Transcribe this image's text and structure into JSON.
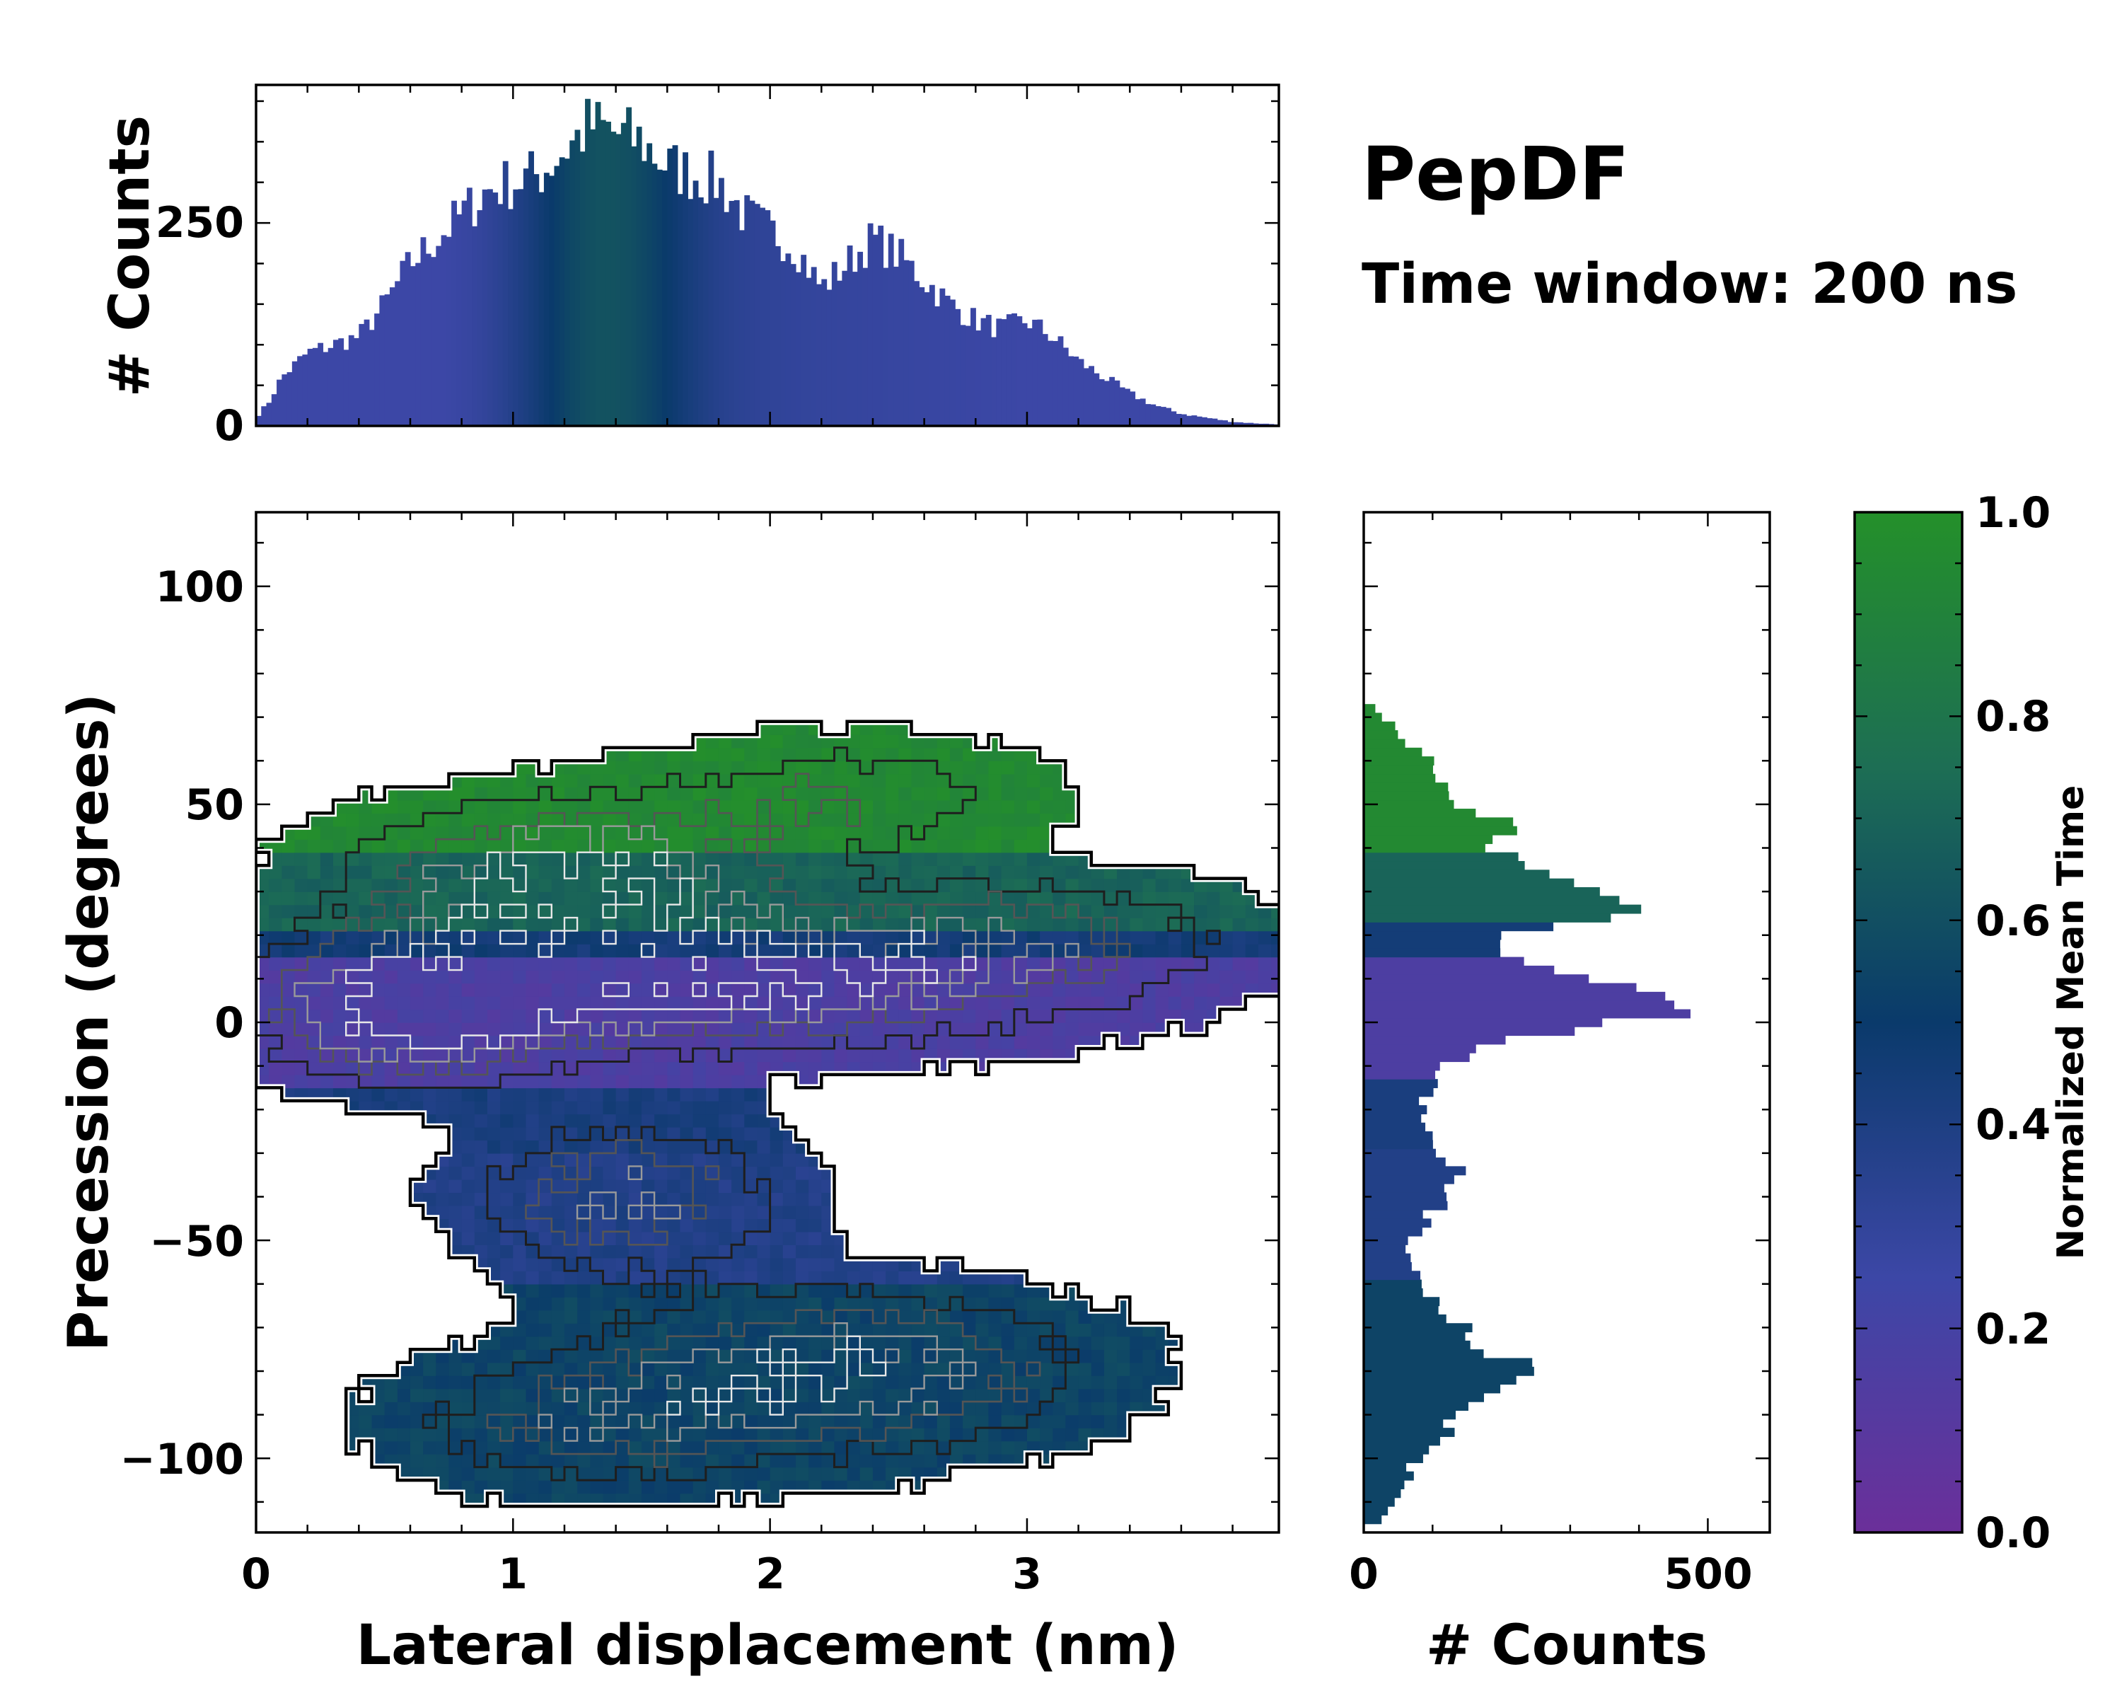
{
  "annotation": {
    "title": "PepDF",
    "subtitle": "Time window: 200 ns"
  },
  "colors": {
    "cmap_low": "#6b2f9a",
    "cmap_lowmid": "#3c47a6",
    "cmap_mid": "#0a3a6b",
    "cmap_highmid": "#1d6e54",
    "cmap_high": "#24902a",
    "contour_outer": "#000000",
    "contour_inner": "#f0f0f0"
  },
  "chart_data": [
    {
      "id": "top-histogram",
      "type": "bar",
      "title": "",
      "xlabel": "",
      "ylabel": "# Counts",
      "xlim": [
        0,
        3.98
      ],
      "ylim": [
        0,
        420
      ],
      "yticks": [
        0,
        250
      ],
      "bin_width": 0.02,
      "anchors_x": [
        0.0,
        0.05,
        0.1,
        0.2,
        0.3,
        0.4,
        0.5,
        0.6,
        0.7,
        0.8,
        0.9,
        1.0,
        1.1,
        1.2,
        1.3,
        1.4,
        1.5,
        1.6,
        1.7,
        1.8,
        1.9,
        2.0,
        2.1,
        2.2,
        2.3,
        2.4,
        2.5,
        2.6,
        2.7,
        2.8,
        2.9,
        3.0,
        3.1,
        3.2,
        3.3,
        3.4,
        3.5,
        3.6,
        3.7,
        3.8,
        3.9,
        3.98
      ],
      "anchors_counts": [
        10,
        30,
        60,
        90,
        100,
        110,
        150,
        200,
        230,
        260,
        290,
        300,
        310,
        340,
        370,
        360,
        350,
        320,
        310,
        300,
        260,
        240,
        220,
        170,
        200,
        230,
        210,
        180,
        150,
        130,
        120,
        130,
        110,
        80,
        60,
        40,
        25,
        15,
        10,
        5,
        3,
        2
      ],
      "colorscale": "normalized mean time"
    },
    {
      "id": "right-histogram",
      "type": "bar",
      "orientation": "horizontal",
      "xlabel": "# Counts",
      "ylabel": "",
      "xlim": [
        0,
        590
      ],
      "ylim": [
        -117,
        117
      ],
      "xticks": [
        0,
        500
      ],
      "bin_width": 2,
      "anchors_y": [
        -115,
        -110,
        -105,
        -100,
        -95,
        -90,
        -85,
        -82,
        -80,
        -75,
        -70,
        -65,
        -60,
        -55,
        -50,
        -45,
        -40,
        -35,
        -30,
        -25,
        -20,
        -15,
        -10,
        -5,
        0,
        3,
        5,
        10,
        15,
        20,
        25,
        30,
        35,
        40,
        45,
        50,
        55,
        60,
        65,
        70,
        72
      ],
      "anchors_counts": [
        20,
        40,
        60,
        80,
        110,
        150,
        210,
        260,
        240,
        180,
        150,
        100,
        80,
        70,
        70,
        90,
        120,
        150,
        120,
        90,
        80,
        110,
        130,
        200,
        320,
        500,
        420,
        300,
        210,
        200,
        390,
        330,
        220,
        180,
        200,
        150,
        100,
        90,
        60,
        30,
        15
      ],
      "colorscale": "normalized mean time"
    },
    {
      "id": "main-2d-histogram",
      "type": "heatmap",
      "title": "",
      "xlabel": "Lateral displacement (nm)",
      "ylabel": "Precession (degrees)",
      "xlim": [
        0,
        3.98
      ],
      "ylim": [
        -117,
        117
      ],
      "xticks": [
        0,
        1,
        2,
        3
      ],
      "yticks": [
        -100,
        -50,
        0,
        50,
        100
      ],
      "value_meaning": "Normalized Mean Time",
      "density_clusters": [
        {
          "x": 1.2,
          "y": 32,
          "spread_x": 0.55,
          "spread_y": 12,
          "weight": 1.0,
          "time": 0.95
        },
        {
          "x": 2.3,
          "y": 52,
          "spread_x": 0.5,
          "spread_y": 9,
          "weight": 0.45,
          "time": 0.85
        },
        {
          "x": 1.6,
          "y": 8,
          "spread_x": 1.0,
          "spread_y": 10,
          "weight": 0.9,
          "time": 0.18
        },
        {
          "x": 0.6,
          "y": 0,
          "spread_x": 0.35,
          "spread_y": 10,
          "weight": 0.8,
          "time": 0.4
        },
        {
          "x": 2.9,
          "y": 20,
          "spread_x": 0.6,
          "spread_y": 9,
          "weight": 0.55,
          "time": 0.12
        },
        {
          "x": 1.45,
          "y": -40,
          "spread_x": 0.4,
          "spread_y": 12,
          "weight": 0.7,
          "time": 0.55
        },
        {
          "x": 2.3,
          "y": -80,
          "spread_x": 0.6,
          "spread_y": 12,
          "weight": 0.9,
          "time": 0.5
        },
        {
          "x": 1.3,
          "y": -92,
          "spread_x": 0.5,
          "spread_y": 10,
          "weight": 0.55,
          "time": 0.45
        }
      ]
    },
    {
      "id": "colorbar",
      "type": "colorbar",
      "label": "Normalized Mean Time",
      "range": [
        0.0,
        1.0
      ],
      "ticks": [
        0.0,
        0.2,
        0.4,
        0.6,
        0.8,
        1.0
      ]
    }
  ],
  "labels": {
    "top_ylabel": "# Counts",
    "main_xlabel": "Lateral displacement (nm)",
    "main_ylabel": "Precession (degrees)",
    "right_xlabel": "# Counts",
    "cbar_label": "Normalized Mean Time",
    "top_ytick_0": "0",
    "top_ytick_250": "250",
    "main_xtick_0": "0",
    "main_xtick_1": "1",
    "main_xtick_2": "2",
    "main_xtick_3": "3",
    "main_ytick_m100": "−100",
    "main_ytick_m50": "−50",
    "main_ytick_0": "0",
    "main_ytick_50": "50",
    "main_ytick_100": "100",
    "right_xtick_0": "0",
    "right_xtick_500": "500",
    "cbar_0": "0.0",
    "cbar_02": "0.2",
    "cbar_04": "0.4",
    "cbar_06": "0.6",
    "cbar_08": "0.8",
    "cbar_10": "1.0"
  }
}
